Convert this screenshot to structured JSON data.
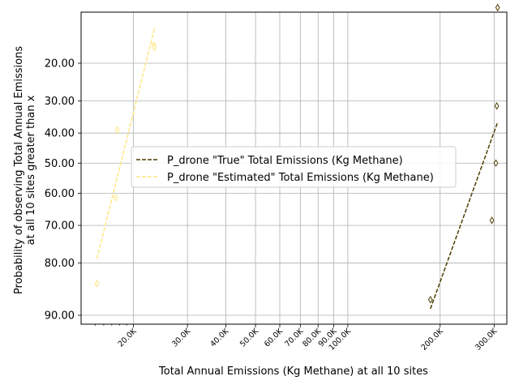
{
  "chart_data": {
    "type": "scatter",
    "xlabel": "Total Annual Emissions (Kg Methane) at all 10 sites",
    "ylabel_lines": [
      "Probability of observing Total Annual Emissions",
      "at all 10 sites greater than x"
    ],
    "x_scale": "log",
    "y_scale": "probit",
    "grid": true,
    "xlim": [
      13500,
      330000
    ],
    "x_ticks": [
      {
        "value": 20000,
        "label": "20.0K"
      },
      {
        "value": 30000,
        "label": "30.0K"
      },
      {
        "value": 40000,
        "label": "40.0K"
      },
      {
        "value": 50000,
        "label": "50.0K"
      },
      {
        "value": 60000,
        "label": "60.0K"
      },
      {
        "value": 70000,
        "label": "70.0K"
      },
      {
        "value": 80000,
        "label": "80.0K"
      },
      {
        "value": 90000,
        "label": "90.0K"
      },
      {
        "value": 100000,
        "label": "100.0K"
      },
      {
        "value": 200000,
        "label": "200.0K"
      },
      {
        "value": 300000,
        "label": "300.0K"
      }
    ],
    "y_ticks": [
      {
        "value": 20,
        "label": "20.00"
      },
      {
        "value": 30,
        "label": "30.00"
      },
      {
        "value": 40,
        "label": "40.00"
      },
      {
        "value": 50,
        "label": "50.00"
      },
      {
        "value": 60,
        "label": "60.00"
      },
      {
        "value": 70,
        "label": "70.00"
      },
      {
        "value": 80,
        "label": "80.00"
      },
      {
        "value": 90,
        "label": "90.00"
      }
    ],
    "legend_position": "center-right",
    "series": [
      {
        "name": "P_drone \"True\" Total Emissions (Kg Methane)",
        "color": "#4d3d00",
        "points": [
          {
            "x": 186000,
            "y": 87.5
          },
          {
            "x": 295000,
            "y": 68.5
          },
          {
            "x": 304000,
            "y": 50.0
          },
          {
            "x": 306000,
            "y": 31.5
          },
          {
            "x": 308000,
            "y": 9.5
          }
        ],
        "fit_line": [
          {
            "x": 186000,
            "y": 89.0
          },
          {
            "x": 308000,
            "y": 36.5
          }
        ]
      },
      {
        "name": "P_drone \"Estimated\" Total Emissions (Kg Methane)",
        "color": "#ffe680",
        "points": [
          {
            "x": 15200,
            "y": 84.5
          },
          {
            "x": 17500,
            "y": 61.5
          },
          {
            "x": 17700,
            "y": 39.0
          },
          {
            "x": 23300,
            "y": 16.0
          },
          {
            "x": 23400,
            "y": 16.5
          }
        ],
        "fit_line": [
          {
            "x": 15200,
            "y": 79.0
          },
          {
            "x": 23500,
            "y": 12.5
          }
        ]
      }
    ]
  }
}
